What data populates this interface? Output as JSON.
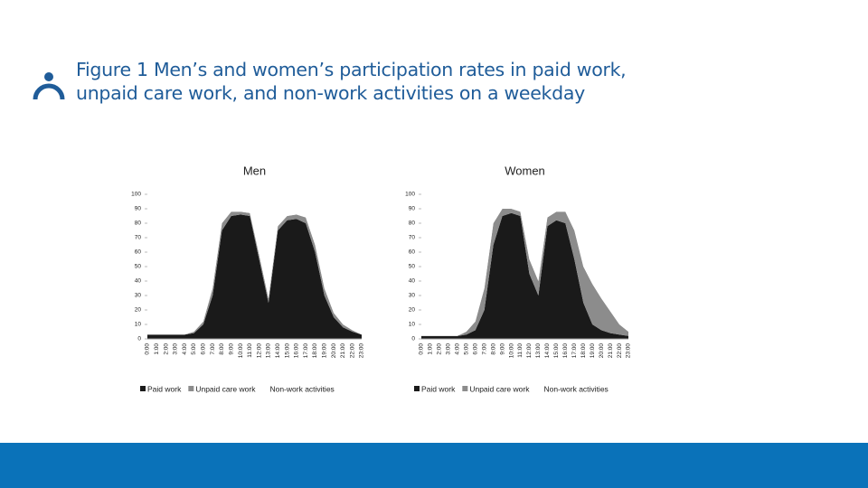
{
  "slide": {
    "title": "Figure 1 Men’s and women’s participation rates in paid work, unpaid care work, and non-work activities on a weekday"
  },
  "chart_data": [
    {
      "type": "area",
      "title": "Men",
      "categories": [
        "0:00",
        "1:00",
        "2:00",
        "3:00",
        "4:00",
        "5:00",
        "6:00",
        "7:00",
        "8:00",
        "9:00",
        "10:00",
        "11:00",
        "12:00",
        "13:00",
        "14:00",
        "15:00",
        "16:00",
        "17:00",
        "18:00",
        "19:00",
        "20:00",
        "21:00",
        "22:00",
        "23:00"
      ],
      "series": [
        {
          "name": "Paid work",
          "color": "#1a1a1a",
          "values": [
            3,
            3,
            3,
            3,
            3,
            4,
            10,
            30,
            75,
            85,
            86,
            85,
            55,
            25,
            75,
            82,
            83,
            80,
            60,
            30,
            15,
            8,
            5,
            3
          ]
        },
        {
          "name": "Unpaid care work",
          "color": "#8c8c8c",
          "values": [
            0,
            0,
            0,
            0,
            0,
            1,
            2,
            5,
            5,
            3,
            2,
            2,
            3,
            3,
            3,
            3,
            3,
            4,
            5,
            5,
            3,
            2,
            1,
            0
          ]
        },
        {
          "name": "Non-work activities",
          "color": "#ffffff",
          "values": [
            97,
            97,
            97,
            97,
            97,
            95,
            88,
            65,
            20,
            12,
            12,
            13,
            42,
            72,
            22,
            15,
            14,
            16,
            35,
            65,
            82,
            90,
            94,
            97
          ]
        }
      ],
      "ylim": [
        0,
        100
      ],
      "yticks": [
        0,
        10,
        20,
        30,
        40,
        50,
        60,
        70,
        80,
        90,
        100
      ],
      "stacked": true
    },
    {
      "type": "area",
      "title": "Women",
      "categories": [
        "0:00",
        "1:00",
        "2:00",
        "3:00",
        "4:00",
        "5:00",
        "6:00",
        "7:00",
        "8:00",
        "9:00",
        "10:00",
        "11:00",
        "12:00",
        "13:00",
        "14:00",
        "15:00",
        "16:00",
        "17:00",
        "18:00",
        "19:00",
        "20:00",
        "21:00",
        "22:00",
        "23:00"
      ],
      "series": [
        {
          "name": "Paid work",
          "color": "#1a1a1a",
          "values": [
            2,
            2,
            2,
            2,
            2,
            3,
            6,
            20,
            65,
            85,
            87,
            85,
            45,
            30,
            78,
            82,
            80,
            55,
            25,
            10,
            6,
            4,
            3,
            2
          ]
        },
        {
          "name": "Unpaid care work",
          "color": "#8c8c8c",
          "values": [
            0,
            0,
            0,
            0,
            0,
            2,
            6,
            15,
            15,
            5,
            3,
            3,
            10,
            10,
            6,
            6,
            8,
            20,
            25,
            28,
            22,
            15,
            7,
            3
          ]
        },
        {
          "name": "Non-work activities",
          "color": "#ffffff",
          "values": [
            98,
            98,
            98,
            98,
            98,
            95,
            88,
            65,
            20,
            10,
            10,
            12,
            45,
            60,
            16,
            12,
            12,
            25,
            50,
            62,
            72,
            81,
            90,
            95
          ]
        }
      ],
      "ylim": [
        0,
        100
      ],
      "yticks": [
        0,
        10,
        20,
        30,
        40,
        50,
        60,
        70,
        80,
        90,
        100
      ],
      "stacked": true
    }
  ]
}
